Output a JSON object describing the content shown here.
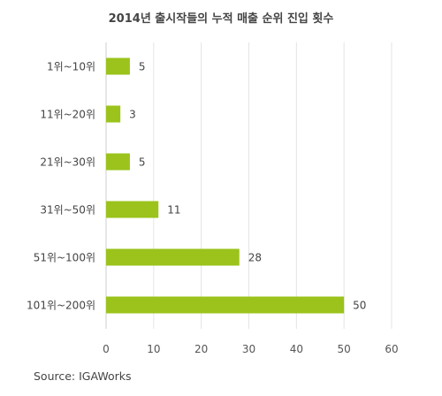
{
  "chart_data": {
    "type": "bar",
    "orientation": "horizontal",
    "title": "2014년 출시작들의 누적 매출 순위 진입 횟수",
    "categories": [
      "1위~10위",
      "11위~20위",
      "21위~30위",
      "31위~50위",
      "51위~100위",
      "101위~200위"
    ],
    "values": [
      5,
      3,
      5,
      11,
      28,
      50
    ],
    "xlim": [
      0,
      60
    ],
    "xticks": [
      0,
      10,
      20,
      30,
      40,
      50,
      60
    ],
    "grid": true,
    "bar_color": "#9bc31c",
    "grid_color": "#e4e4e4",
    "source": "Source: IGAWorks"
  }
}
